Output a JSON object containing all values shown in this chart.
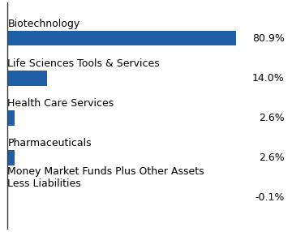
{
  "categories": [
    "Biotechnology",
    "Life Sciences Tools & Services",
    "Health Care Services",
    "Pharmaceuticals",
    "Money Market Funds Plus Other Assets\nLess Liabilities"
  ],
  "values": [
    80.9,
    14.0,
    2.6,
    2.6,
    -0.1
  ],
  "labels": [
    "80.9%",
    "14.0%",
    "2.6%",
    "2.6%",
    "-0.1%"
  ],
  "bar_color": "#1F5FA6",
  "background_color": "#ffffff",
  "bar_height": 0.38,
  "label_fontsize": 9.0,
  "category_fontsize": 9.0,
  "spine_color": "#333333"
}
